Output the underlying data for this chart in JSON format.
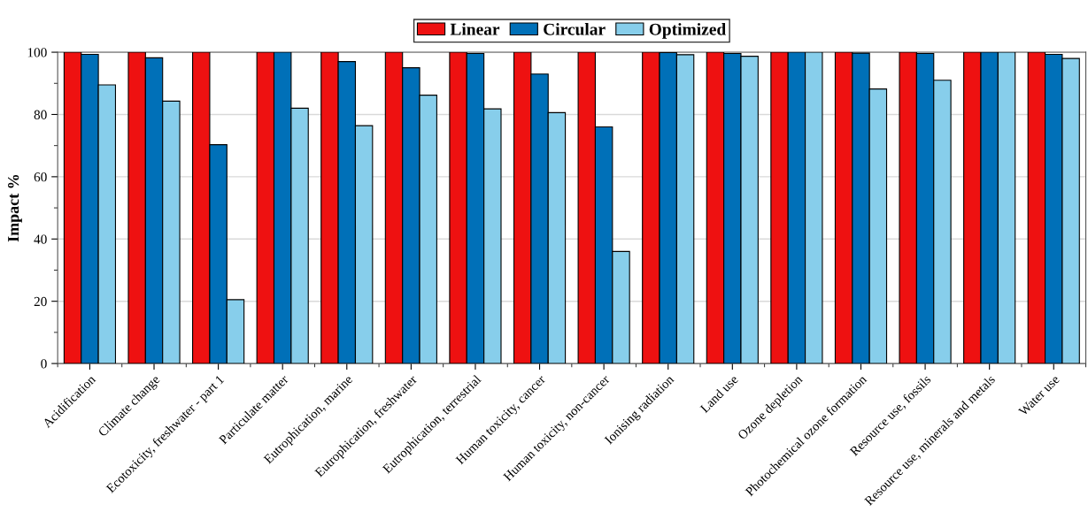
{
  "chart_data": {
    "type": "bar",
    "ylabel": "Impact %",
    "categories": [
      "Acidification",
      "Climate change",
      "Ecotoxicity, freshwater - part 1",
      "Particulate matter",
      "Eutrophication, marine",
      "Eutrophication, freshwater",
      "Eutrophication, terrestrial",
      "Human toxicity, cancer",
      "Human toxicity, non-cancer",
      "Ionising radiation",
      "Land use",
      "Ozone depletion",
      "Photochemical ozone formation",
      "Resource use, fossils",
      "Resource use, minerals and metals",
      "Water use"
    ],
    "series": [
      {
        "name": "Linear",
        "color": "#ee1111",
        "values": [
          100,
          100,
          100,
          100,
          100,
          100,
          100,
          100,
          100,
          100,
          100,
          100,
          100,
          100,
          100,
          100
        ]
      },
      {
        "name": "Circular",
        "color": "#0070b8",
        "values": [
          99.3,
          98.2,
          70.3,
          100,
          97,
          95,
          99.6,
          93,
          76,
          99.9,
          99.6,
          100,
          99.7,
          99.6,
          100,
          99.3
        ]
      },
      {
        "name": "Optimized",
        "color": "#87ceeb",
        "values": [
          89.5,
          84.3,
          20.5,
          82,
          76.4,
          86.2,
          81.8,
          80.6,
          36,
          99.2,
          98.7,
          100,
          88.2,
          91,
          100,
          98
        ]
      }
    ],
    "ylim": [
      0,
      100
    ],
    "yticks": [
      0,
      20,
      40,
      60,
      80,
      100
    ],
    "grid": "y",
    "legend": "top"
  }
}
